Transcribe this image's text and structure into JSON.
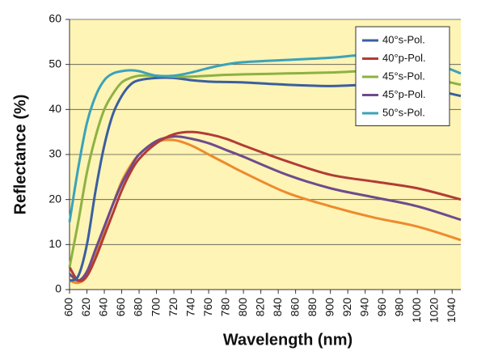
{
  "chart_data": {
    "type": "line",
    "x_label": "Wavelength (nm)",
    "y_label": "Reflectance (%)",
    "x": [
      600,
      610,
      620,
      630,
      640,
      650,
      660,
      670,
      680,
      700,
      720,
      740,
      760,
      780,
      800,
      850,
      900,
      950,
      1000,
      1050
    ],
    "series": [
      {
        "name": "40°s-Pol.",
        "color": "#3a5f9f",
        "values": [
          2,
          3,
          10,
          22,
          32,
          39,
          43,
          45.5,
          46.5,
          47,
          47,
          46.5,
          46.2,
          46.1,
          46,
          45.5,
          45.2,
          45.5,
          45,
          43
        ]
      },
      {
        "name": "40°p-Pol.",
        "color": "#b23b36",
        "values": [
          5,
          2,
          3,
          7,
          12,
          17,
          22,
          26,
          29,
          32.5,
          34.5,
          35,
          34.5,
          33.5,
          32,
          28.5,
          25.5,
          24,
          22.5,
          20
        ]
      },
      {
        "name": "45°s-Pol.",
        "color": "#8db243",
        "values": [
          5,
          15,
          26,
          34,
          40,
          43.5,
          46,
          47,
          47.5,
          47.5,
          47.3,
          47.3,
          47.5,
          47.7,
          47.8,
          48,
          48.2,
          48.5,
          47.5,
          45.5
        ]
      },
      {
        "name": "45°p-Pol.",
        "color": "#6d4b8d",
        "values": [
          3.5,
          2,
          4,
          9,
          14,
          19,
          23.5,
          27,
          30,
          33,
          34,
          33.5,
          32.5,
          31,
          29.5,
          25.5,
          22.5,
          20.5,
          18.5,
          15.5
        ]
      },
      {
        "name": "50°s-Pol.",
        "color": "#3ba2ba",
        "values": [
          15,
          27,
          37,
          43,
          46.5,
          48,
          48.5,
          48.7,
          48.5,
          47.5,
          47.5,
          48.2,
          49.2,
          50,
          50.5,
          51,
          51.5,
          52.2,
          51.5,
          48
        ]
      },
      {
        "color": "#ee8a2e",
        "values": [
          2,
          1.5,
          3,
          8,
          13.5,
          19,
          24,
          27.5,
          30,
          32.8,
          33.2,
          32,
          30,
          28,
          26,
          21.5,
          18.5,
          16,
          14,
          11
        ]
      }
    ],
    "xlim": [
      600,
      1050
    ],
    "ylim": [
      0,
      60
    ],
    "xticks": [
      600,
      620,
      640,
      660,
      680,
      700,
      720,
      740,
      760,
      780,
      800,
      820,
      840,
      860,
      880,
      900,
      920,
      940,
      960,
      980,
      1000,
      1020,
      1040
    ],
    "yticks": [
      0,
      10,
      20,
      30,
      40,
      50,
      60
    ],
    "grid": true,
    "legend": "upper right"
  }
}
